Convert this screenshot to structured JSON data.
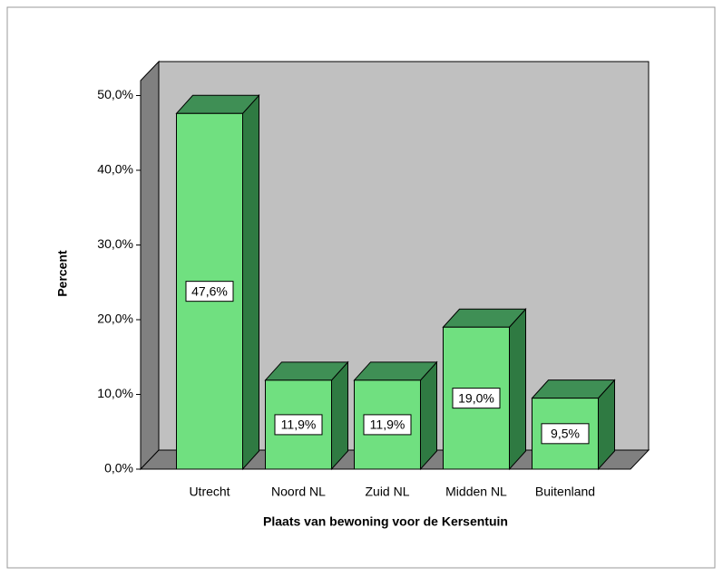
{
  "chart_data": {
    "type": "bar3d",
    "categories": [
      "Utrecht",
      "Noord NL",
      "Zuid NL",
      "Midden NL",
      "Buitenland"
    ],
    "values": [
      47.6,
      11.9,
      11.9,
      19.0,
      9.5
    ],
    "value_labels": [
      "47,6%",
      "11,9%",
      "11,9%",
      "19,0%",
      "9,5%"
    ],
    "color": "#70e080",
    "ylim": [
      0,
      52
    ],
    "yticks": [
      {
        "value": 0,
        "label": "0,0%"
      },
      {
        "value": 10,
        "label": "10,0%"
      },
      {
        "value": 20,
        "label": "20,0%"
      },
      {
        "value": 30,
        "label": "30,0%"
      },
      {
        "value": 40,
        "label": "40,0%"
      },
      {
        "value": 50,
        "label": "50,0%"
      }
    ],
    "y_label": "Percent",
    "x_label": "Plaats van bewoning voor de Kersentuin"
  }
}
